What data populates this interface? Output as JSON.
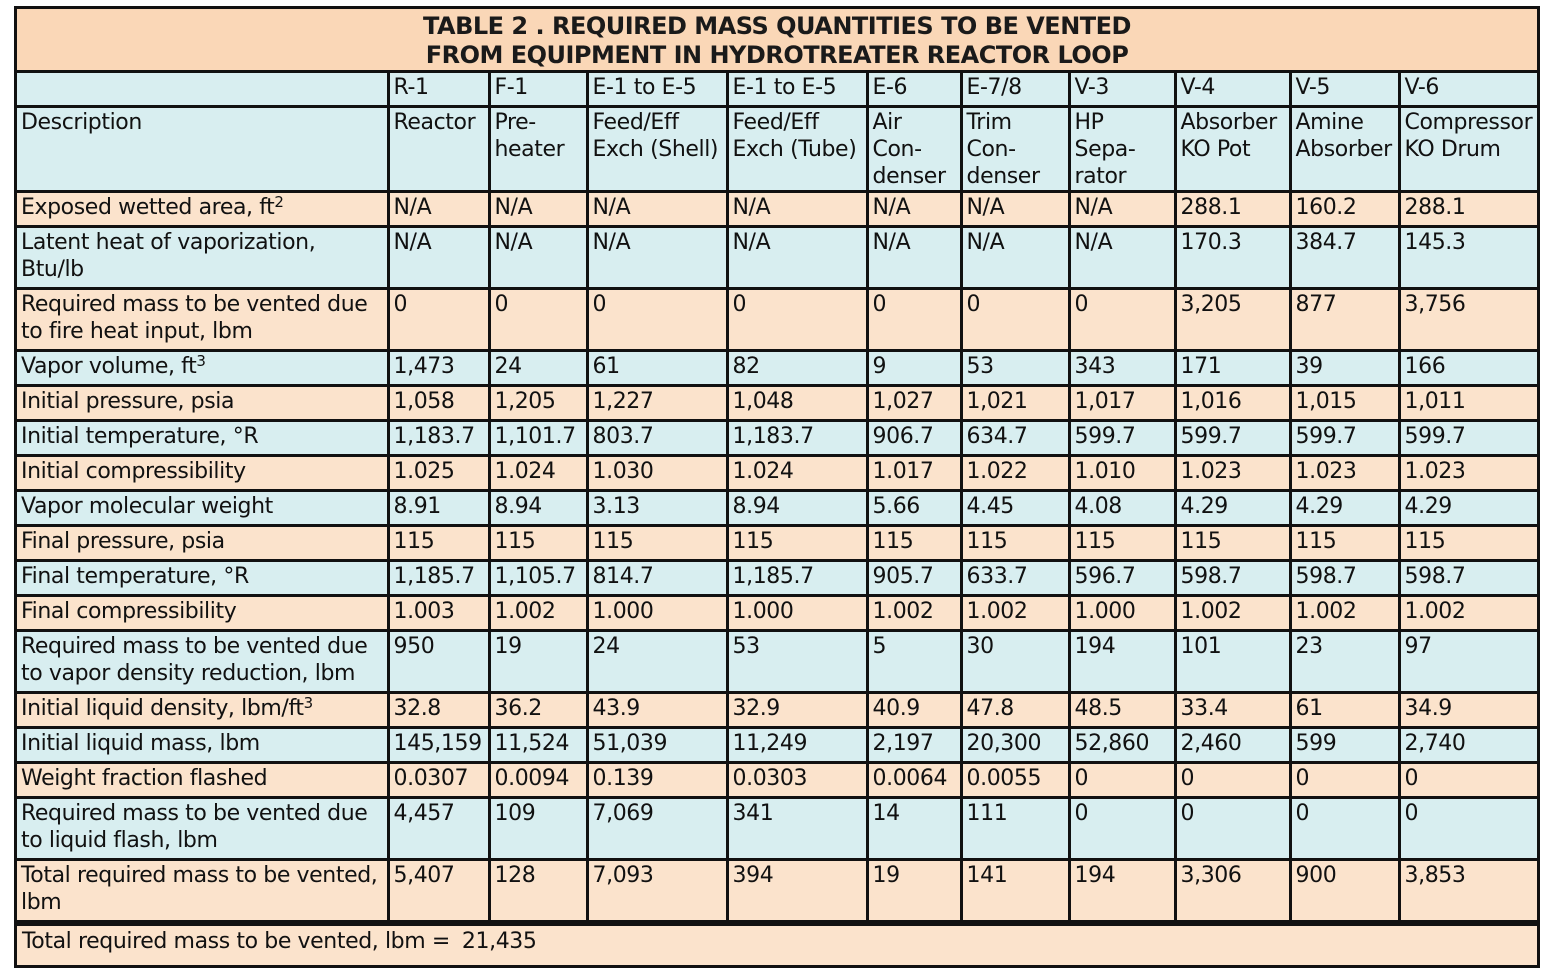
{
  "title": {
    "line1": "TABLE 2 .  REQUIRED MASS QUANTITIES TO BE VENTED",
    "line2": "FROM EQUIPMENT IN HYDROTREATER REACTOR LOOP"
  },
  "columns": [
    {
      "tag": "R-1",
      "desc": "Reactor"
    },
    {
      "tag": "F-1",
      "desc": "Pre- heater"
    },
    {
      "tag": "E-1 to E-5",
      "desc": "Feed/Eff Exch (Shell)"
    },
    {
      "tag": "E-1 to E-5",
      "desc": "Feed/Eff Exch (Tube)"
    },
    {
      "tag": "E-6",
      "desc": "Air Con- denser"
    },
    {
      "tag": "E-7/8",
      "desc": "Trim Con- denser"
    },
    {
      "tag": "V-3",
      "desc": "HP Sepa- rator"
    },
    {
      "tag": "V-4",
      "desc": "Absorber KO Pot"
    },
    {
      "tag": "V-5",
      "desc": "Amine Absorber"
    },
    {
      "tag": "V-6",
      "desc": "Compressor KO Drum"
    }
  ],
  "description_label": "Description",
  "rows": [
    {
      "label": "Exposed wetted area, ft",
      "sup": "2",
      "values": [
        "N/A",
        "N/A",
        "N/A",
        "N/A",
        "N/A",
        "N/A",
        "N/A",
        "288.1",
        "160.2",
        "288.1"
      ]
    },
    {
      "label": "Latent heat of vaporization, Btu/lb",
      "sup": "",
      "values": [
        "N/A",
        "N/A",
        "N/A",
        "N/A",
        "N/A",
        "N/A",
        "N/A",
        "170.3",
        "384.7",
        "145.3"
      ]
    },
    {
      "label": "Required mass to be vented due to fire heat input, lbm",
      "sup": "",
      "values": [
        "0",
        "0",
        "0",
        "0",
        "0",
        "0",
        "0",
        "3,205",
        "877",
        "3,756"
      ]
    },
    {
      "label": "Vapor volume, ft",
      "sup": "3",
      "values": [
        "1,473",
        "24",
        "61",
        "82",
        "9",
        "53",
        "343",
        "171",
        "39",
        "166"
      ]
    },
    {
      "label": "Initial pressure, psia",
      "sup": "",
      "values": [
        "1,058",
        "1,205",
        "1,227",
        "1,048",
        "1,027",
        "1,021",
        "1,017",
        "1,016",
        "1,015",
        "1,011"
      ]
    },
    {
      "label": "Initial temperature, °R",
      "sup": "",
      "values": [
        "1,183.7",
        "1,101.7",
        "803.7",
        "1,183.7",
        "906.7",
        "634.7",
        "599.7",
        "599.7",
        "599.7",
        "599.7"
      ]
    },
    {
      "label": "Initial compressibility",
      "sup": "",
      "values": [
        "1.025",
        "1.024",
        "1.030",
        "1.024",
        "1.017",
        "1.022",
        "1.010",
        "1.023",
        "1.023",
        "1.023"
      ]
    },
    {
      "label": "Vapor molecular weight",
      "sup": "",
      "values": [
        "8.91",
        "8.94",
        "3.13",
        "8.94",
        "5.66",
        "4.45",
        "4.08",
        "4.29",
        "4.29",
        "4.29"
      ]
    },
    {
      "label": "Final pressure, psia",
      "sup": "",
      "values": [
        "115",
        "115",
        "115",
        "115",
        "115",
        "115",
        "115",
        "115",
        "115",
        "115"
      ]
    },
    {
      "label": "Final temperature, °R",
      "sup": "",
      "values": [
        "1,185.7",
        "1,105.7",
        "814.7",
        "1,185.7",
        "905.7",
        "633.7",
        "596.7",
        "598.7",
        "598.7",
        "598.7"
      ]
    },
    {
      "label": "Final compressibility",
      "sup": "",
      "values": [
        "1.003",
        "1.002",
        "1.000",
        "1.000",
        "1.002",
        "1.002",
        "1.000",
        "1.002",
        "1.002",
        "1.002"
      ]
    },
    {
      "label": "Required mass to be vented due to vapor density reduction, lbm",
      "sup": "",
      "values": [
        "950",
        "19",
        "24",
        "53",
        "5",
        "30",
        "194",
        "101",
        "23",
        "97"
      ]
    },
    {
      "label": "Initial liquid density, lbm/ft",
      "sup": "3",
      "values": [
        "32.8",
        "36.2",
        "43.9",
        "32.9",
        "40.9",
        "47.8",
        "48.5",
        "33.4",
        "61",
        "34.9"
      ]
    },
    {
      "label": "Initial liquid mass, lbm",
      "sup": "",
      "values": [
        "145,159",
        "11,524",
        "51,039",
        "11,249",
        "2,197",
        "20,300",
        "52,860",
        "2,460",
        "599",
        "2,740"
      ]
    },
    {
      "label": "Weight fraction flashed",
      "sup": "",
      "values": [
        "0.0307",
        "0.0094",
        "0.139",
        "0.0303",
        "0.0064",
        "0.0055",
        "0",
        "0",
        "0",
        "0"
      ]
    },
    {
      "label": "Required mass to be vented due to liquid flash, lbm",
      "sup": "",
      "values": [
        "4,457",
        "109",
        "7,069",
        "341",
        "14",
        "111",
        "0",
        "0",
        "0",
        "0"
      ]
    },
    {
      "label": "Total required mass to be vented, lbm",
      "sup": "",
      "values": [
        "5,407",
        "128",
        "7,093",
        "394",
        "19",
        "141",
        "194",
        "3,306",
        "900",
        "3,853"
      ]
    }
  ],
  "footer": {
    "label": "Total required mass to be vented, lbm =",
    "value": "21,435"
  },
  "colors": {
    "title_bg": "#fad7b7",
    "blue_row": "#d8eef0",
    "peach_row": "#fbe3cc",
    "border": "#111111"
  }
}
